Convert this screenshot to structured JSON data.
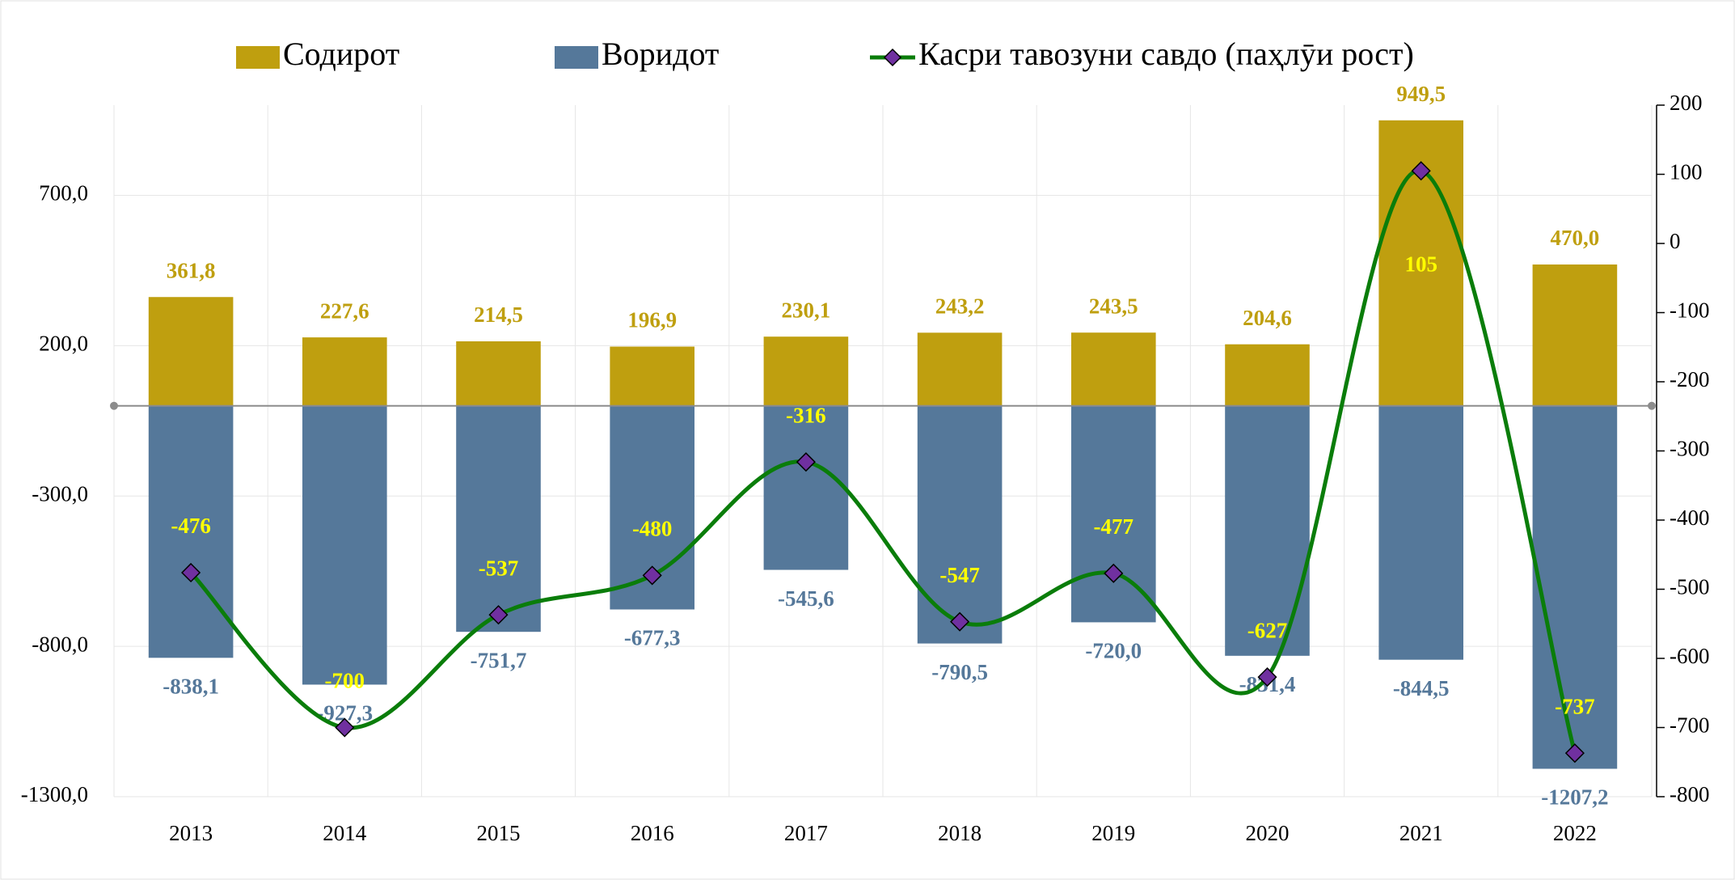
{
  "chart_data": {
    "type": "bar",
    "categories": [
      "2013",
      "2014",
      "2015",
      "2016",
      "2017",
      "2018",
      "2019",
      "2020",
      "2021",
      "2022"
    ],
    "series": [
      {
        "name": "Содирот",
        "type": "bar",
        "color": "#bf9f0f",
        "values": [
          361.8,
          227.6,
          214.5,
          196.9,
          230.1,
          243.2,
          243.5,
          204.6,
          949.5,
          470.0
        ],
        "value_labels": [
          "361,8",
          "227,6",
          "214,5",
          "196,9",
          "230,1",
          "243,2",
          "243,5",
          "204,6",
          "949,5",
          "470,0"
        ]
      },
      {
        "name": "Воридот",
        "type": "bar",
        "color": "#55789a",
        "values": [
          -838.1,
          -927.3,
          -751.7,
          -677.3,
          -545.6,
          -790.5,
          -720.0,
          -831.4,
          -844.5,
          -1207.2
        ],
        "value_labels": [
          "-838,1",
          "-927,3",
          "-751,7",
          "-677,3",
          "-545,6",
          "-790,5",
          "-720,0",
          "-831,4",
          "-844,5",
          "-1207,2"
        ]
      },
      {
        "name": "Касри тавозуни савдо (паҳлӯи рост)",
        "type": "line",
        "axis": "y2",
        "color": "#0a7d0a",
        "marker_color": "#7030a0",
        "values": [
          -476,
          -700,
          -537,
          -480,
          -316,
          -547,
          -477,
          -627,
          105,
          -737
        ]
      }
    ],
    "ylim": [
      -1300,
      1000
    ],
    "yticks": [
      {
        "value": 700,
        "label": "700,0"
      },
      {
        "value": 200,
        "label": "200,0"
      },
      {
        "value": -300,
        "label": "-300,0"
      },
      {
        "value": -800,
        "label": "-800,0"
      },
      {
        "value": -1300,
        "label": "-1300,0"
      }
    ],
    "y2lim": [
      -800,
      200
    ],
    "y2ticks": [
      200,
      100,
      0,
      -100,
      -200,
      -300,
      -400,
      -500,
      -600,
      -700,
      -800
    ],
    "grid": true,
    "legend": "top"
  }
}
